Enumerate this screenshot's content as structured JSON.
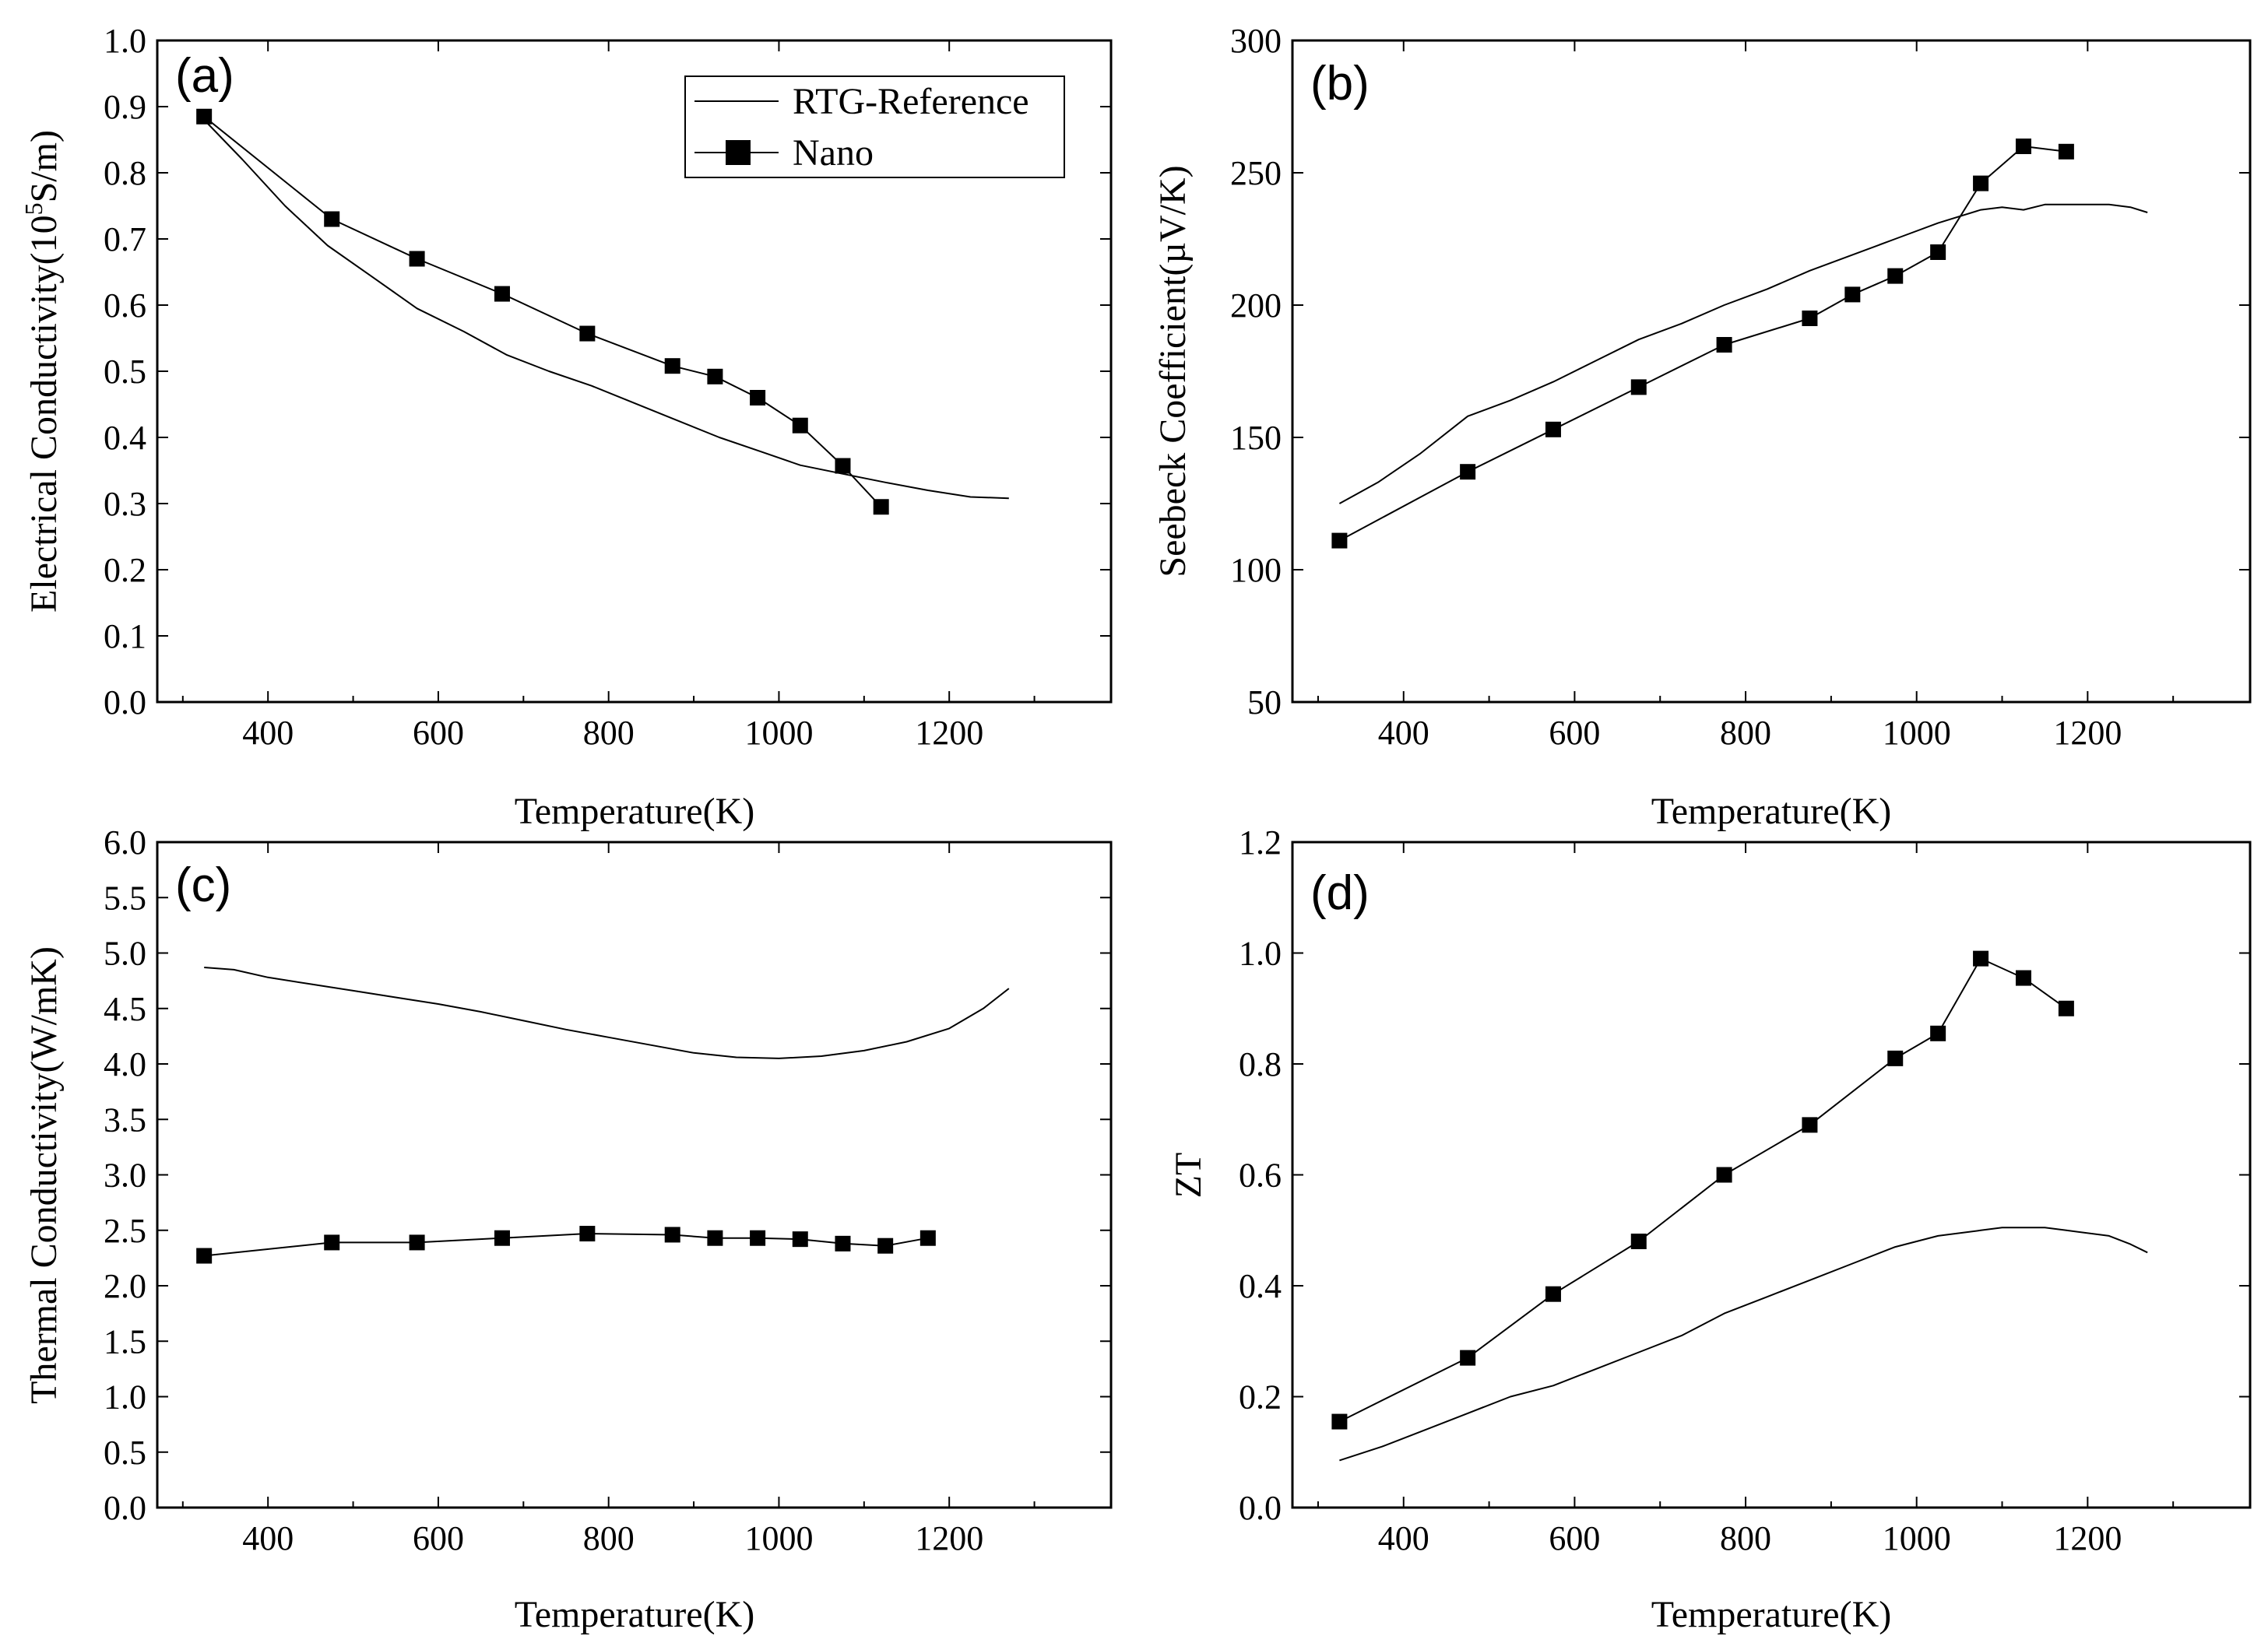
{
  "colors": {
    "line": "#000000",
    "background": "#ffffff"
  },
  "legend": {
    "reference_label": "RTG-Reference",
    "nano_label": "Nano"
  },
  "chart_data": [
    {
      "type": "line",
      "panel": "(a)",
      "xlabel": "Temperature(K)",
      "ylabel": "Electrical Conductivity(10^5S/m)",
      "ylabel_pre": "Electrical Conductivity(10",
      "ylabel_sup": "5",
      "ylabel_post": "S/m)",
      "xlim": [
        270,
        1390
      ],
      "ylim": [
        0,
        1.0
      ],
      "xticks": [
        400,
        600,
        800,
        1000,
        1200
      ],
      "yticks": [
        0.0,
        0.1,
        0.2,
        0.3,
        0.4,
        0.5,
        0.6,
        0.7,
        0.8,
        0.9,
        1.0
      ],
      "ytick_decimals": 1,
      "legend_position": "top-right",
      "series": [
        {
          "name": "RTG-Reference",
          "marker": "none",
          "x": [
            325,
            370,
            420,
            470,
            520,
            575,
            630,
            680,
            730,
            780,
            830,
            880,
            930,
            980,
            1025,
            1075,
            1125,
            1175,
            1225,
            1270
          ],
          "y": [
            0.88,
            0.82,
            0.75,
            0.69,
            0.645,
            0.595,
            0.56,
            0.525,
            0.5,
            0.478,
            0.452,
            0.426,
            0.4,
            0.378,
            0.358,
            0.345,
            0.332,
            0.32,
            0.31,
            0.308
          ]
        },
        {
          "name": "Nano",
          "marker": "square",
          "x": [
            325,
            475,
            575,
            675,
            775,
            875,
            925,
            975,
            1025,
            1075,
            1120
          ],
          "y": [
            0.885,
            0.73,
            0.67,
            0.617,
            0.557,
            0.508,
            0.492,
            0.46,
            0.418,
            0.357,
            0.295
          ]
        }
      ]
    },
    {
      "type": "line",
      "panel": "(b)",
      "xlabel": "Temperature(K)",
      "ylabel": "Seebeck Coefficient(µV/K)",
      "xlim": [
        270,
        1390
      ],
      "ylim": [
        50,
        300
      ],
      "xticks": [
        400,
        600,
        800,
        1000,
        1200
      ],
      "yticks": [
        50,
        100,
        150,
        200,
        250,
        300
      ],
      "ytick_decimals": 0,
      "series": [
        {
          "name": "RTG-Reference",
          "marker": "none",
          "x": [
            325,
            370,
            420,
            475,
            525,
            575,
            625,
            675,
            725,
            775,
            825,
            875,
            925,
            975,
            1025,
            1075,
            1100,
            1125,
            1150,
            1175,
            1225,
            1250,
            1270
          ],
          "y": [
            125,
            133,
            144,
            158,
            164,
            171,
            179,
            187,
            193,
            200,
            206,
            213,
            219,
            225,
            231,
            236,
            237,
            236,
            238,
            238,
            238,
            237,
            235
          ]
        },
        {
          "name": "Nano",
          "marker": "square",
          "x": [
            325,
            475,
            575,
            675,
            775,
            875,
            925,
            975,
            1025,
            1075,
            1125,
            1175
          ],
          "y": [
            111,
            137,
            153,
            169,
            185,
            195,
            204,
            211,
            220,
            246,
            260,
            258
          ]
        }
      ]
    },
    {
      "type": "line",
      "panel": "(c)",
      "xlabel": "Temperature(K)",
      "ylabel": "Thermal Conductivity(W/mK)",
      "xlim": [
        270,
        1390
      ],
      "ylim": [
        0,
        6.0
      ],
      "xticks": [
        400,
        600,
        800,
        1000,
        1200
      ],
      "yticks": [
        0.0,
        0.5,
        1.0,
        1.5,
        2.0,
        2.5,
        3.0,
        3.5,
        4.0,
        4.5,
        5.0,
        5.5,
        6.0
      ],
      "ytick_decimals": 1,
      "series": [
        {
          "name": "RTG-Reference",
          "marker": "none",
          "x": [
            325,
            360,
            400,
            450,
            500,
            550,
            600,
            650,
            700,
            750,
            800,
            850,
            900,
            950,
            1000,
            1050,
            1100,
            1150,
            1200,
            1240,
            1270
          ],
          "y": [
            4.87,
            4.85,
            4.78,
            4.72,
            4.66,
            4.6,
            4.54,
            4.47,
            4.39,
            4.31,
            4.24,
            4.17,
            4.1,
            4.06,
            4.05,
            4.07,
            4.12,
            4.2,
            4.32,
            4.5,
            4.68
          ]
        },
        {
          "name": "Nano",
          "marker": "square",
          "x": [
            325,
            475,
            575,
            675,
            775,
            875,
            925,
            975,
            1025,
            1075,
            1125,
            1175
          ],
          "y": [
            2.27,
            2.39,
            2.39,
            2.43,
            2.47,
            2.46,
            2.43,
            2.43,
            2.42,
            2.38,
            2.36,
            2.43
          ]
        }
      ]
    },
    {
      "type": "line",
      "panel": "(d)",
      "xlabel": "Temperature(K)",
      "ylabel": "ZT",
      "xlim": [
        270,
        1390
      ],
      "ylim": [
        0,
        1.2
      ],
      "xticks": [
        400,
        600,
        800,
        1000,
        1200
      ],
      "yticks": [
        0.0,
        0.2,
        0.4,
        0.6,
        0.8,
        1.0,
        1.2
      ],
      "ytick_decimals": 1,
      "series": [
        {
          "name": "RTG-Reference",
          "marker": "none",
          "x": [
            325,
            375,
            425,
            475,
            525,
            575,
            625,
            675,
            725,
            775,
            825,
            875,
            925,
            975,
            1025,
            1075,
            1100,
            1150,
            1175,
            1225,
            1250,
            1270
          ],
          "y": [
            0.085,
            0.11,
            0.14,
            0.17,
            0.2,
            0.22,
            0.25,
            0.28,
            0.31,
            0.35,
            0.38,
            0.41,
            0.44,
            0.47,
            0.49,
            0.5,
            0.505,
            0.505,
            0.5,
            0.49,
            0.475,
            0.46
          ]
        },
        {
          "name": "Nano",
          "marker": "square",
          "x": [
            325,
            475,
            575,
            675,
            775,
            875,
            975,
            1025,
            1075,
            1125,
            1175
          ],
          "y": [
            0.155,
            0.27,
            0.385,
            0.48,
            0.6,
            0.69,
            0.81,
            0.855,
            0.99,
            0.955,
            0.9
          ]
        }
      ]
    }
  ]
}
